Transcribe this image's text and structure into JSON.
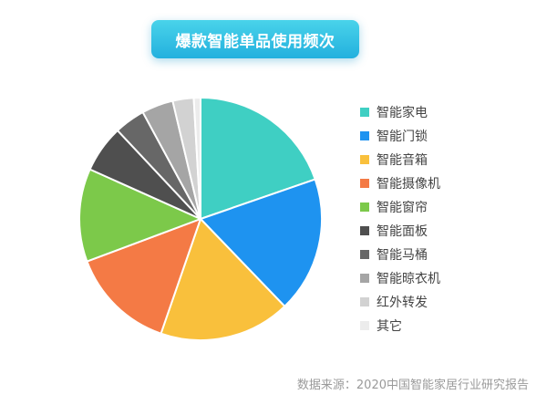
{
  "title": "爆款智能单品使用频次",
  "source": "数据来源：2020中国智能家居行业研究报告",
  "chart_data": {
    "type": "pie",
    "title": "爆款智能单品使用频次",
    "categories": [
      "智能家电",
      "智能门锁",
      "智能音箱",
      "智能摄像机",
      "智能窗帘",
      "智能面板",
      "智能马桶",
      "智能晾衣机",
      "红外转发",
      "其它"
    ],
    "values": [
      19.7,
      18.1,
      17.5,
      14.0,
      12.4,
      6.3,
      4.1,
      4.2,
      2.8,
      0.9
    ],
    "colors": [
      "#3fcfc3",
      "#1e93f0",
      "#f9c03c",
      "#f47a45",
      "#7cc94a",
      "#4f4f4f",
      "#676767",
      "#a5a5a5",
      "#d2d2d2",
      "#ececec"
    ],
    "legend_position": "right",
    "legend": [
      "智能家电",
      "智能门锁",
      "智能音箱",
      "智能摄像机",
      "智能窗帘",
      "智能面板",
      "智能马桶",
      "智能晾衣机",
      "红外转发",
      "其它"
    ]
  }
}
